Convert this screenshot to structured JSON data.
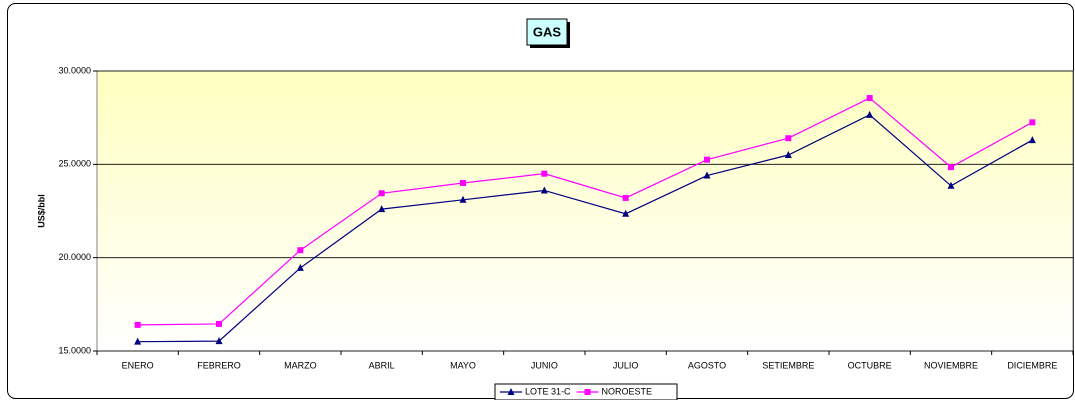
{
  "chart_data": {
    "type": "line",
    "title": "GAS",
    "y_label": "US$/bbl",
    "categories": [
      "ENERO",
      "FEBRERO",
      "MARZO",
      "ABRIL",
      "MAYO",
      "JUNIO",
      "JULIO",
      "AGOSTO",
      "SETIEMBRE",
      "OCTUBRE",
      "NOVIEMBRE",
      "DICIEMBRE"
    ],
    "series": [
      {
        "name": "LOTE 31-C",
        "color": "#000080",
        "marker": "triangle",
        "values": [
          15.5,
          15.53,
          19.45,
          22.6,
          23.1,
          23.6,
          22.35,
          24.4,
          25.5,
          27.65,
          23.85,
          26.3
        ]
      },
      {
        "name": "NOROESTE",
        "color": "#ff00ff",
        "marker": "square",
        "values": [
          16.4,
          16.45,
          20.4,
          23.45,
          24.0,
          24.5,
          23.2,
          25.25,
          26.4,
          28.55,
          24.85,
          27.25
        ]
      }
    ],
    "ylim": [
      15,
      30
    ],
    "yticks": [
      {
        "value": 15,
        "label": "15.0000"
      },
      {
        "value": 20,
        "label": "20.0000"
      },
      {
        "value": 25,
        "label": "25.0000"
      },
      {
        "value": 30,
        "label": "30.0000"
      }
    ],
    "grid": true,
    "legend": "bottom"
  }
}
